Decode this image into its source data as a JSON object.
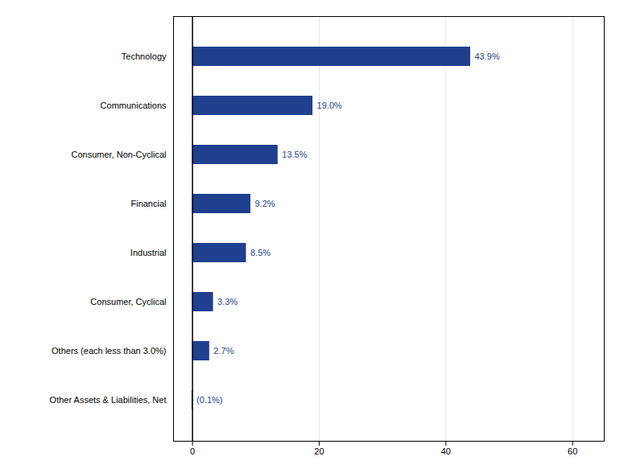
{
  "chart_data": {
    "type": "bar",
    "orientation": "horizontal",
    "categories": [
      "Other Assets & Liabilities, Net",
      "Others (each less than 3.0%)",
      "Consumer, Cyclical",
      "Industrial",
      "Financial",
      "Consumer, Non-Cyclical",
      "Communications",
      "Technology"
    ],
    "values": [
      -0.1,
      2.7,
      3.3,
      8.5,
      9.2,
      13.5,
      19.0,
      43.9
    ],
    "value_labels": [
      "(0.1%)",
      "2.7%",
      "3.3%",
      "8.5%",
      "9.2%",
      "13.5%",
      "19.0%",
      "43.9%"
    ],
    "data_labels": true,
    "color": "#1F3F8F",
    "xlim": [
      -3,
      65
    ],
    "xticks": [
      0,
      20,
      40,
      60
    ],
    "grid": true
  }
}
